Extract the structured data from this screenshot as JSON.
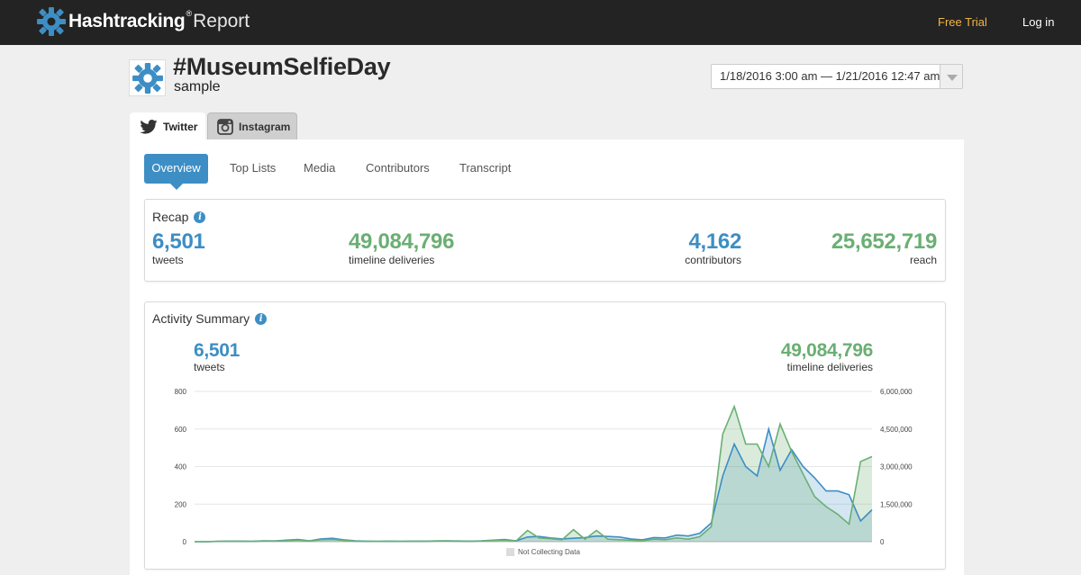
{
  "topbar": {
    "brand_name": "Hashtracking",
    "brand_registered": "®",
    "brand_suffix": "Report",
    "free_trial": "Free Trial",
    "login": "Log in",
    "accent_color": "#f1b545"
  },
  "header": {
    "hashtag": "#MuseumSelfieDay",
    "subtitle": "sample",
    "date_range": "1/18/2016 3:00 am — 1/21/2016 12:47 am"
  },
  "platform_tabs": [
    {
      "label": "Twitter",
      "icon": "twitter-bird-icon",
      "active": true
    },
    {
      "label": "Instagram",
      "icon": "instagram-camera-icon",
      "active": false
    }
  ],
  "subtabs": [
    {
      "label": "Overview",
      "active": true
    },
    {
      "label": "Top Lists",
      "active": false
    },
    {
      "label": "Media",
      "active": false
    },
    {
      "label": "Contributors",
      "active": false
    },
    {
      "label": "Transcript",
      "active": false
    }
  ],
  "recap": {
    "title": "Recap",
    "stats": [
      {
        "value": "6,501",
        "label": "tweets",
        "color": "#3d8ec4"
      },
      {
        "value": "49,084,796",
        "label": "timeline deliveries",
        "color": "#6aaf73"
      },
      {
        "value": "4,162",
        "label": "contributors",
        "color": "#3d8ec4"
      },
      {
        "value": "25,652,719",
        "label": "reach",
        "color": "#6aaf73"
      }
    ]
  },
  "activity": {
    "title": "Activity Summary",
    "left_stat": {
      "value": "6,501",
      "label": "tweets"
    },
    "right_stat": {
      "value": "49,084,796",
      "label": "timeline deliveries"
    },
    "legend": "Not Collecting Data"
  },
  "chart_data": {
    "type": "area",
    "left_axis": {
      "ticks": [
        "800",
        "600",
        "400",
        "200",
        "0"
      ],
      "range": [
        0,
        800
      ],
      "series": "tweets",
      "color": "#3d8ec4"
    },
    "right_axis": {
      "ticks": [
        "6,000,000",
        "4,500,000",
        "3,000,000",
        "1,500,000",
        "0"
      ],
      "range": [
        0,
        6000000
      ],
      "series": "timeline deliveries",
      "color": "#6aaf73"
    },
    "grid": true,
    "x_count": 60,
    "series": [
      {
        "name": "tweets",
        "axis": "left",
        "values": [
          0,
          0,
          2,
          3,
          3,
          2,
          5,
          4,
          8,
          12,
          5,
          15,
          18,
          10,
          5,
          3,
          2,
          3,
          2,
          3,
          3,
          4,
          5,
          4,
          3,
          5,
          8,
          12,
          5,
          25,
          28,
          20,
          15,
          18,
          22,
          30,
          28,
          25,
          15,
          10,
          22,
          20,
          35,
          30,
          45,
          100,
          350,
          520,
          400,
          350,
          600,
          380,
          490,
          400,
          340,
          270,
          270,
          250,
          110,
          170
        ]
      },
      {
        "name": "timeline deliveries",
        "axis": "right",
        "values": [
          0,
          0,
          10000,
          20000,
          20000,
          10000,
          30000,
          30000,
          40000,
          60000,
          30000,
          80000,
          90000,
          50000,
          20000,
          10000,
          10000,
          20000,
          10000,
          20000,
          20000,
          30000,
          30000,
          20000,
          20000,
          30000,
          50000,
          60000,
          30000,
          450000,
          150000,
          120000,
          80000,
          480000,
          100000,
          450000,
          100000,
          80000,
          60000,
          40000,
          100000,
          80000,
          150000,
          100000,
          200000,
          600000,
          4300000,
          5400000,
          3900000,
          3900000,
          3000000,
          4700000,
          3600000,
          2700000,
          1800000,
          1400000,
          1100000,
          700000,
          3200000,
          3400000
        ]
      }
    ]
  }
}
